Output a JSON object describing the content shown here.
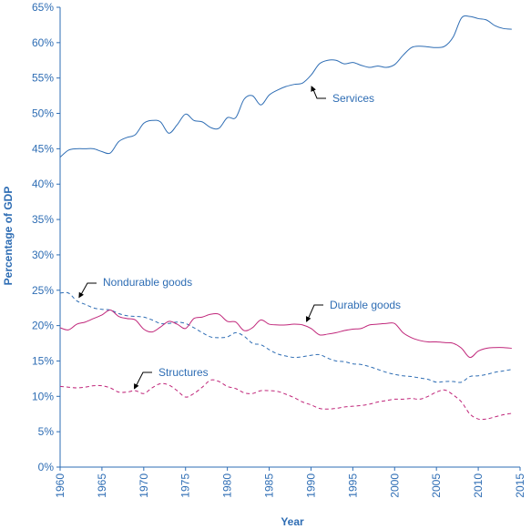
{
  "chart_data": {
    "type": "line",
    "title": "",
    "xlabel": "Year",
    "ylabel": "Percentage of GDP",
    "xlim": [
      1960,
      2015
    ],
    "ylim": [
      0,
      65
    ],
    "xticks": [
      "1960",
      "1965",
      "1970",
      "1975",
      "1980",
      "1985",
      "1990",
      "1995",
      "2000",
      "2005",
      "2010",
      "2015"
    ],
    "yticks": [
      "0%",
      "5%",
      "10%",
      "15%",
      "20%",
      "25%",
      "30%",
      "35%",
      "40%",
      "45%",
      "50%",
      "55%",
      "60%",
      "65%"
    ],
    "grid": false,
    "colors": {
      "axis": "#2e6db4",
      "services": "#2e6db4",
      "nondurable": "#2e6db4",
      "durable": "#c0267a",
      "structures": "#c0267a"
    },
    "series": [
      {
        "name": "Services",
        "style": "solid",
        "x": [
          1960,
          1961,
          1962,
          1963,
          1964,
          1965,
          1966,
          1967,
          1968,
          1969,
          1970,
          1971,
          1972,
          1973,
          1974,
          1975,
          1976,
          1977,
          1978,
          1979,
          1980,
          1981,
          1982,
          1983,
          1984,
          1985,
          1986,
          1987,
          1988,
          1989,
          1990,
          1991,
          1992,
          1993,
          1994,
          1995,
          1996,
          1997,
          1998,
          1999,
          2000,
          2001,
          2002,
          2003,
          2004,
          2005,
          2006,
          2007,
          2008,
          2009,
          2010,
          2011,
          2012,
          2013,
          2014
        ],
        "values": [
          43.8,
          44.8,
          45.0,
          45.0,
          45.0,
          44.6,
          44.4,
          46.0,
          46.6,
          47.0,
          48.6,
          49.0,
          48.8,
          47.2,
          48.4,
          49.9,
          49.0,
          48.8,
          48.0,
          47.9,
          49.4,
          49.4,
          52.0,
          52.5,
          51.2,
          52.6,
          53.3,
          53.8,
          54.1,
          54.3,
          55.4,
          57.0,
          57.5,
          57.5,
          57.0,
          57.2,
          56.8,
          56.5,
          56.7,
          56.5,
          56.9,
          58.2,
          59.3,
          59.5,
          59.4,
          59.3,
          59.5,
          60.8,
          63.5,
          63.7,
          63.4,
          63.2,
          62.4,
          62.0,
          61.9
        ]
      },
      {
        "name": "Nondurable goods",
        "style": "dashed",
        "x": [
          1960,
          1961,
          1962,
          1963,
          1964,
          1965,
          1966,
          1967,
          1968,
          1969,
          1970,
          1971,
          1972,
          1973,
          1974,
          1975,
          1976,
          1977,
          1978,
          1979,
          1980,
          1981,
          1982,
          1983,
          1984,
          1985,
          1986,
          1987,
          1988,
          1989,
          1990,
          1991,
          1992,
          1993,
          1994,
          1995,
          1996,
          1997,
          1998,
          1999,
          2000,
          2001,
          2002,
          2003,
          2004,
          2005,
          2006,
          2007,
          2008,
          2009,
          2010,
          2011,
          2012,
          2013,
          2014
        ],
        "values": [
          24.6,
          24.6,
          23.5,
          23.0,
          22.5,
          22.3,
          22.2,
          21.7,
          21.4,
          21.3,
          21.2,
          20.8,
          20.3,
          20.3,
          20.5,
          20.3,
          19.7,
          19.0,
          18.4,
          18.3,
          18.4,
          19.0,
          18.5,
          17.5,
          17.3,
          16.6,
          16.0,
          15.7,
          15.5,
          15.6,
          15.8,
          15.9,
          15.4,
          15.0,
          14.9,
          14.6,
          14.5,
          14.2,
          13.8,
          13.4,
          13.1,
          12.9,
          12.8,
          12.6,
          12.4,
          12.0,
          12.1,
          12.1,
          12.0,
          12.8,
          12.9,
          13.1,
          13.4,
          13.6,
          13.8
        ]
      },
      {
        "name": "Durable goods",
        "style": "solid",
        "x": [
          1960,
          1961,
          1962,
          1963,
          1964,
          1965,
          1966,
          1967,
          1968,
          1969,
          1970,
          1971,
          1972,
          1973,
          1974,
          1975,
          1976,
          1977,
          1978,
          1979,
          1980,
          1981,
          1982,
          1983,
          1984,
          1985,
          1986,
          1987,
          1988,
          1989,
          1990,
          1991,
          1992,
          1993,
          1994,
          1995,
          1996,
          1997,
          1998,
          1999,
          2000,
          2001,
          2002,
          2003,
          2004,
          2005,
          2006,
          2007,
          2008,
          2009,
          2010,
          2011,
          2012,
          2013,
          2014
        ],
        "values": [
          19.7,
          19.4,
          20.2,
          20.5,
          21.0,
          21.5,
          22.2,
          21.3,
          21.0,
          20.8,
          19.5,
          19.1,
          19.8,
          20.6,
          20.2,
          19.6,
          21.0,
          21.2,
          21.6,
          21.6,
          20.6,
          20.5,
          19.3,
          19.7,
          20.8,
          20.2,
          20.1,
          20.1,
          20.2,
          20.1,
          19.6,
          18.7,
          18.8,
          19.0,
          19.3,
          19.5,
          19.6,
          20.1,
          20.2,
          20.3,
          20.3,
          19.0,
          18.3,
          17.9,
          17.7,
          17.7,
          17.6,
          17.5,
          16.8,
          15.5,
          16.4,
          16.8,
          16.9,
          16.9,
          16.8
        ]
      },
      {
        "name": "Structures",
        "style": "dashed",
        "x": [
          1960,
          1961,
          1962,
          1963,
          1964,
          1965,
          1966,
          1967,
          1968,
          1969,
          1970,
          1971,
          1972,
          1973,
          1974,
          1975,
          1976,
          1977,
          1978,
          1979,
          1980,
          1981,
          1982,
          1983,
          1984,
          1985,
          1986,
          1987,
          1988,
          1989,
          1990,
          1991,
          1992,
          1993,
          1994,
          1995,
          1996,
          1997,
          1998,
          1999,
          2000,
          2001,
          2002,
          2003,
          2004,
          2005,
          2006,
          2007,
          2008,
          2009,
          2010,
          2011,
          2012,
          2013,
          2014
        ],
        "values": [
          11.4,
          11.3,
          11.2,
          11.3,
          11.5,
          11.5,
          11.2,
          10.6,
          10.6,
          10.8,
          10.4,
          11.2,
          11.8,
          11.6,
          10.8,
          9.9,
          10.4,
          11.3,
          12.3,
          12.1,
          11.4,
          11.1,
          10.5,
          10.4,
          10.8,
          10.8,
          10.7,
          10.3,
          9.8,
          9.2,
          8.8,
          8.3,
          8.2,
          8.3,
          8.5,
          8.6,
          8.7,
          8.9,
          9.2,
          9.4,
          9.6,
          9.6,
          9.7,
          9.6,
          10.0,
          10.6,
          10.9,
          10.2,
          9.2,
          7.5,
          6.8,
          6.8,
          7.1,
          7.4,
          7.6
        ]
      }
    ],
    "annotations": [
      {
        "label": "Services",
        "series": "Services",
        "year": 1989.8,
        "value": 54.3
      },
      {
        "label": "Nondurable goods",
        "series": "Nondurable goods",
        "year": 1962.0,
        "value": 23.5
      },
      {
        "label": "Durable goods",
        "series": "Durable goods",
        "year": 1989.2,
        "value": 20.1
      },
      {
        "label": "Structures",
        "series": "Structures",
        "year": 1968.6,
        "value": 10.6
      }
    ]
  }
}
